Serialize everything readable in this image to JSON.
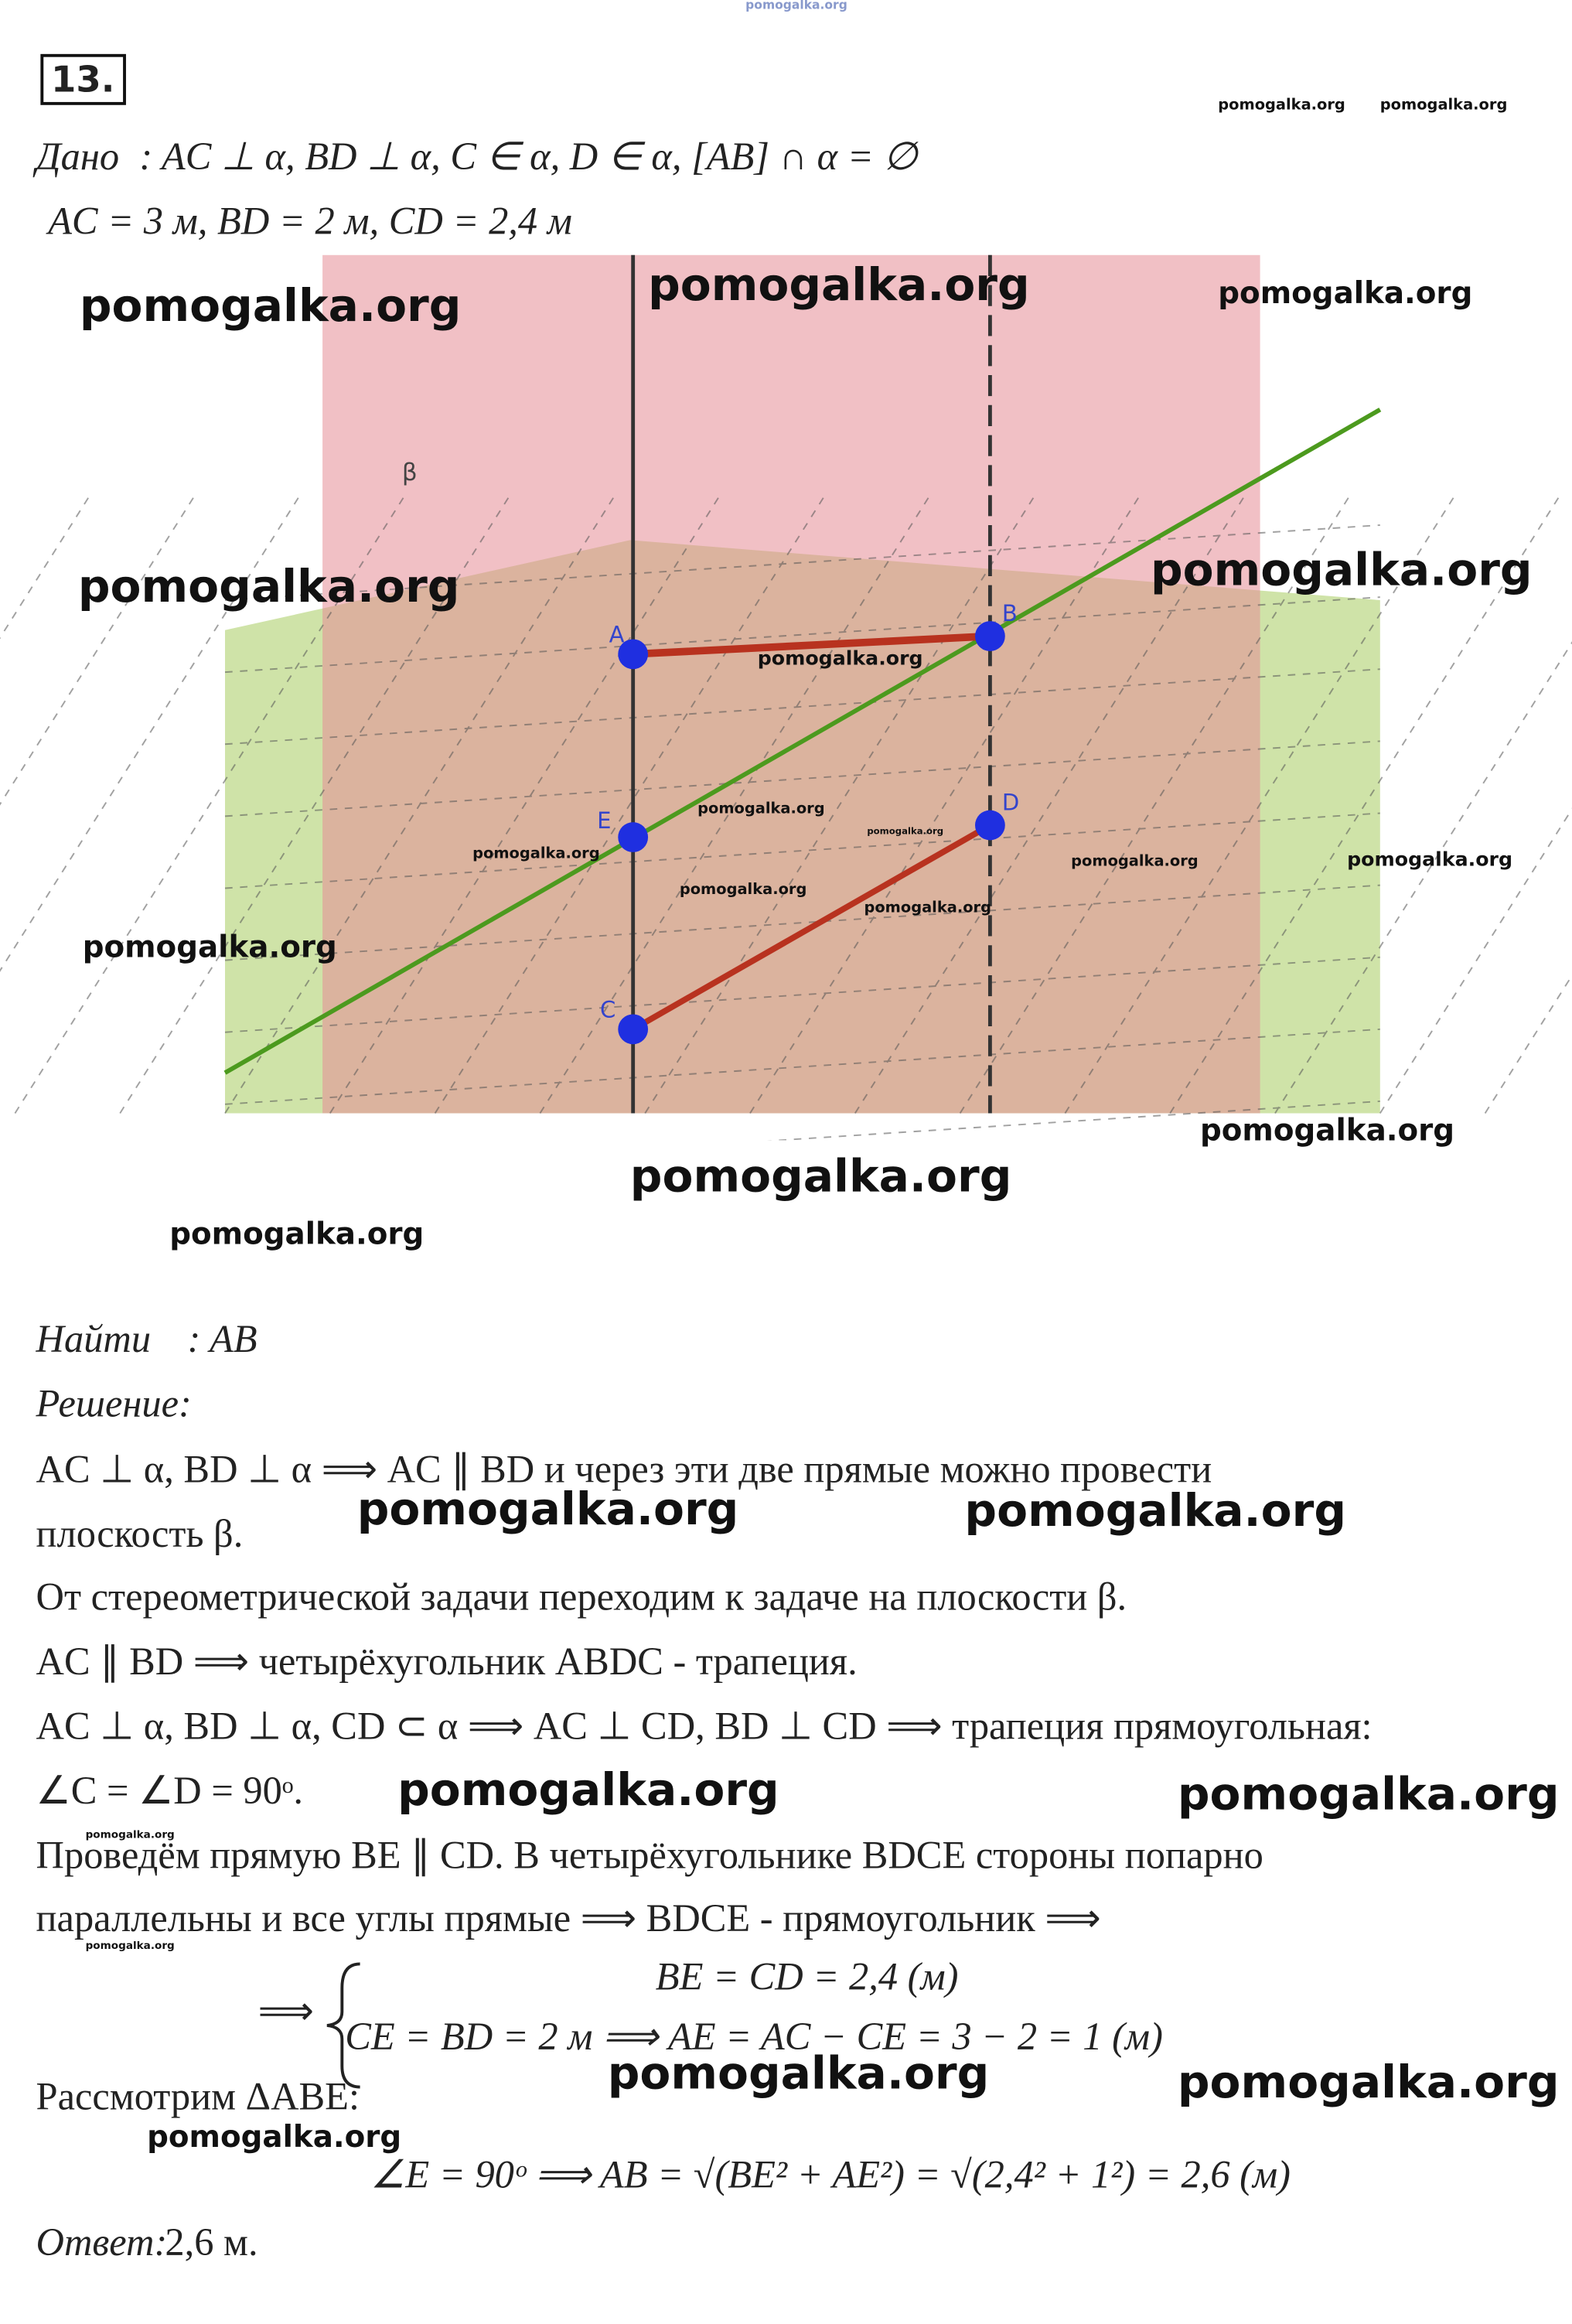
{
  "header": {
    "number": "13."
  },
  "given": {
    "label": "Дано",
    "line1": ": AC ⊥ α, BD ⊥ α,  C ∈ α, D ∈ α,  [AB] ∩ α = ∅",
    "line2": "AC = 3 м,  BD = 2 м,  CD = 2,4 м"
  },
  "figure": {
    "plane_label": "β",
    "points": [
      "A",
      "B",
      "C",
      "D",
      "E"
    ]
  },
  "find": {
    "label": "Найти",
    "text": ": AB"
  },
  "solution": {
    "label": "Решение:",
    "lines": [
      "AC ⊥ α, BD ⊥ α ⟹  AC ∥ BD и через эти две прямые можно провести",
      "плоскость β.",
      "От стереометрической задачи переходим к задаче на плоскости β.",
      "AC ∥ BD ⟹ четырёхугольник ABDC - трапеция.",
      "AC ⊥ α, BD ⊥ α, CD ⊂ α  ⟹ AC ⊥ CD, BD ⊥ CD ⟹ трапеция прямоугольная:",
      "∠C = ∠D = 90ᵒ.",
      "Проведём прямую BE ∥ CD. В четырёхугольнике BDCE стороны попарно",
      "параллельны и все углы прямые ⟹ BDCE - прямоугольник ⟹"
    ],
    "system": {
      "prefix": "⟹",
      "row1": "BE = CD = 2,4 (м)",
      "row2": "CE = BD = 2 м ⟹ AE = AC − CE = 3 − 2 = 1 (м)"
    },
    "consider": "Рассмотрим ΔABE:",
    "final": "∠E = 90ᵒ ⟹ AB = √(BE² + AE²) = √(2,4² + 1²) = 2,6 (м)"
  },
  "answer": {
    "label": "Ответ:",
    "text": " 2,6 м."
  },
  "watermarks": [
    "pomogalka.org",
    "pomogalka.org",
    "pomogalka.org",
    "pomogalka.org",
    "pomogalka.org",
    "pomogalka.org",
    "pomogalka.org",
    "pomogalka.org",
    "pomogalka.org",
    "pomogalka.org",
    "pomogalka.org",
    "pomogalka.org",
    "pomogalka.org",
    "pomogalka.org",
    "pomogalka.org",
    "pomogalka.org",
    "pomogalka.org",
    "pomogalka.org",
    "pomogalka.org",
    "pomogalka.org",
    "pomogalka.org",
    "pomogalka.org",
    "pomogalka.org",
    "pomogalka.org",
    "pomogalka.org",
    "pomogalka.org",
    "pomogalka.org",
    "pomogalka.org",
    "pomogalka.org",
    "pomogalka.org",
    "pomogalka.org"
  ]
}
